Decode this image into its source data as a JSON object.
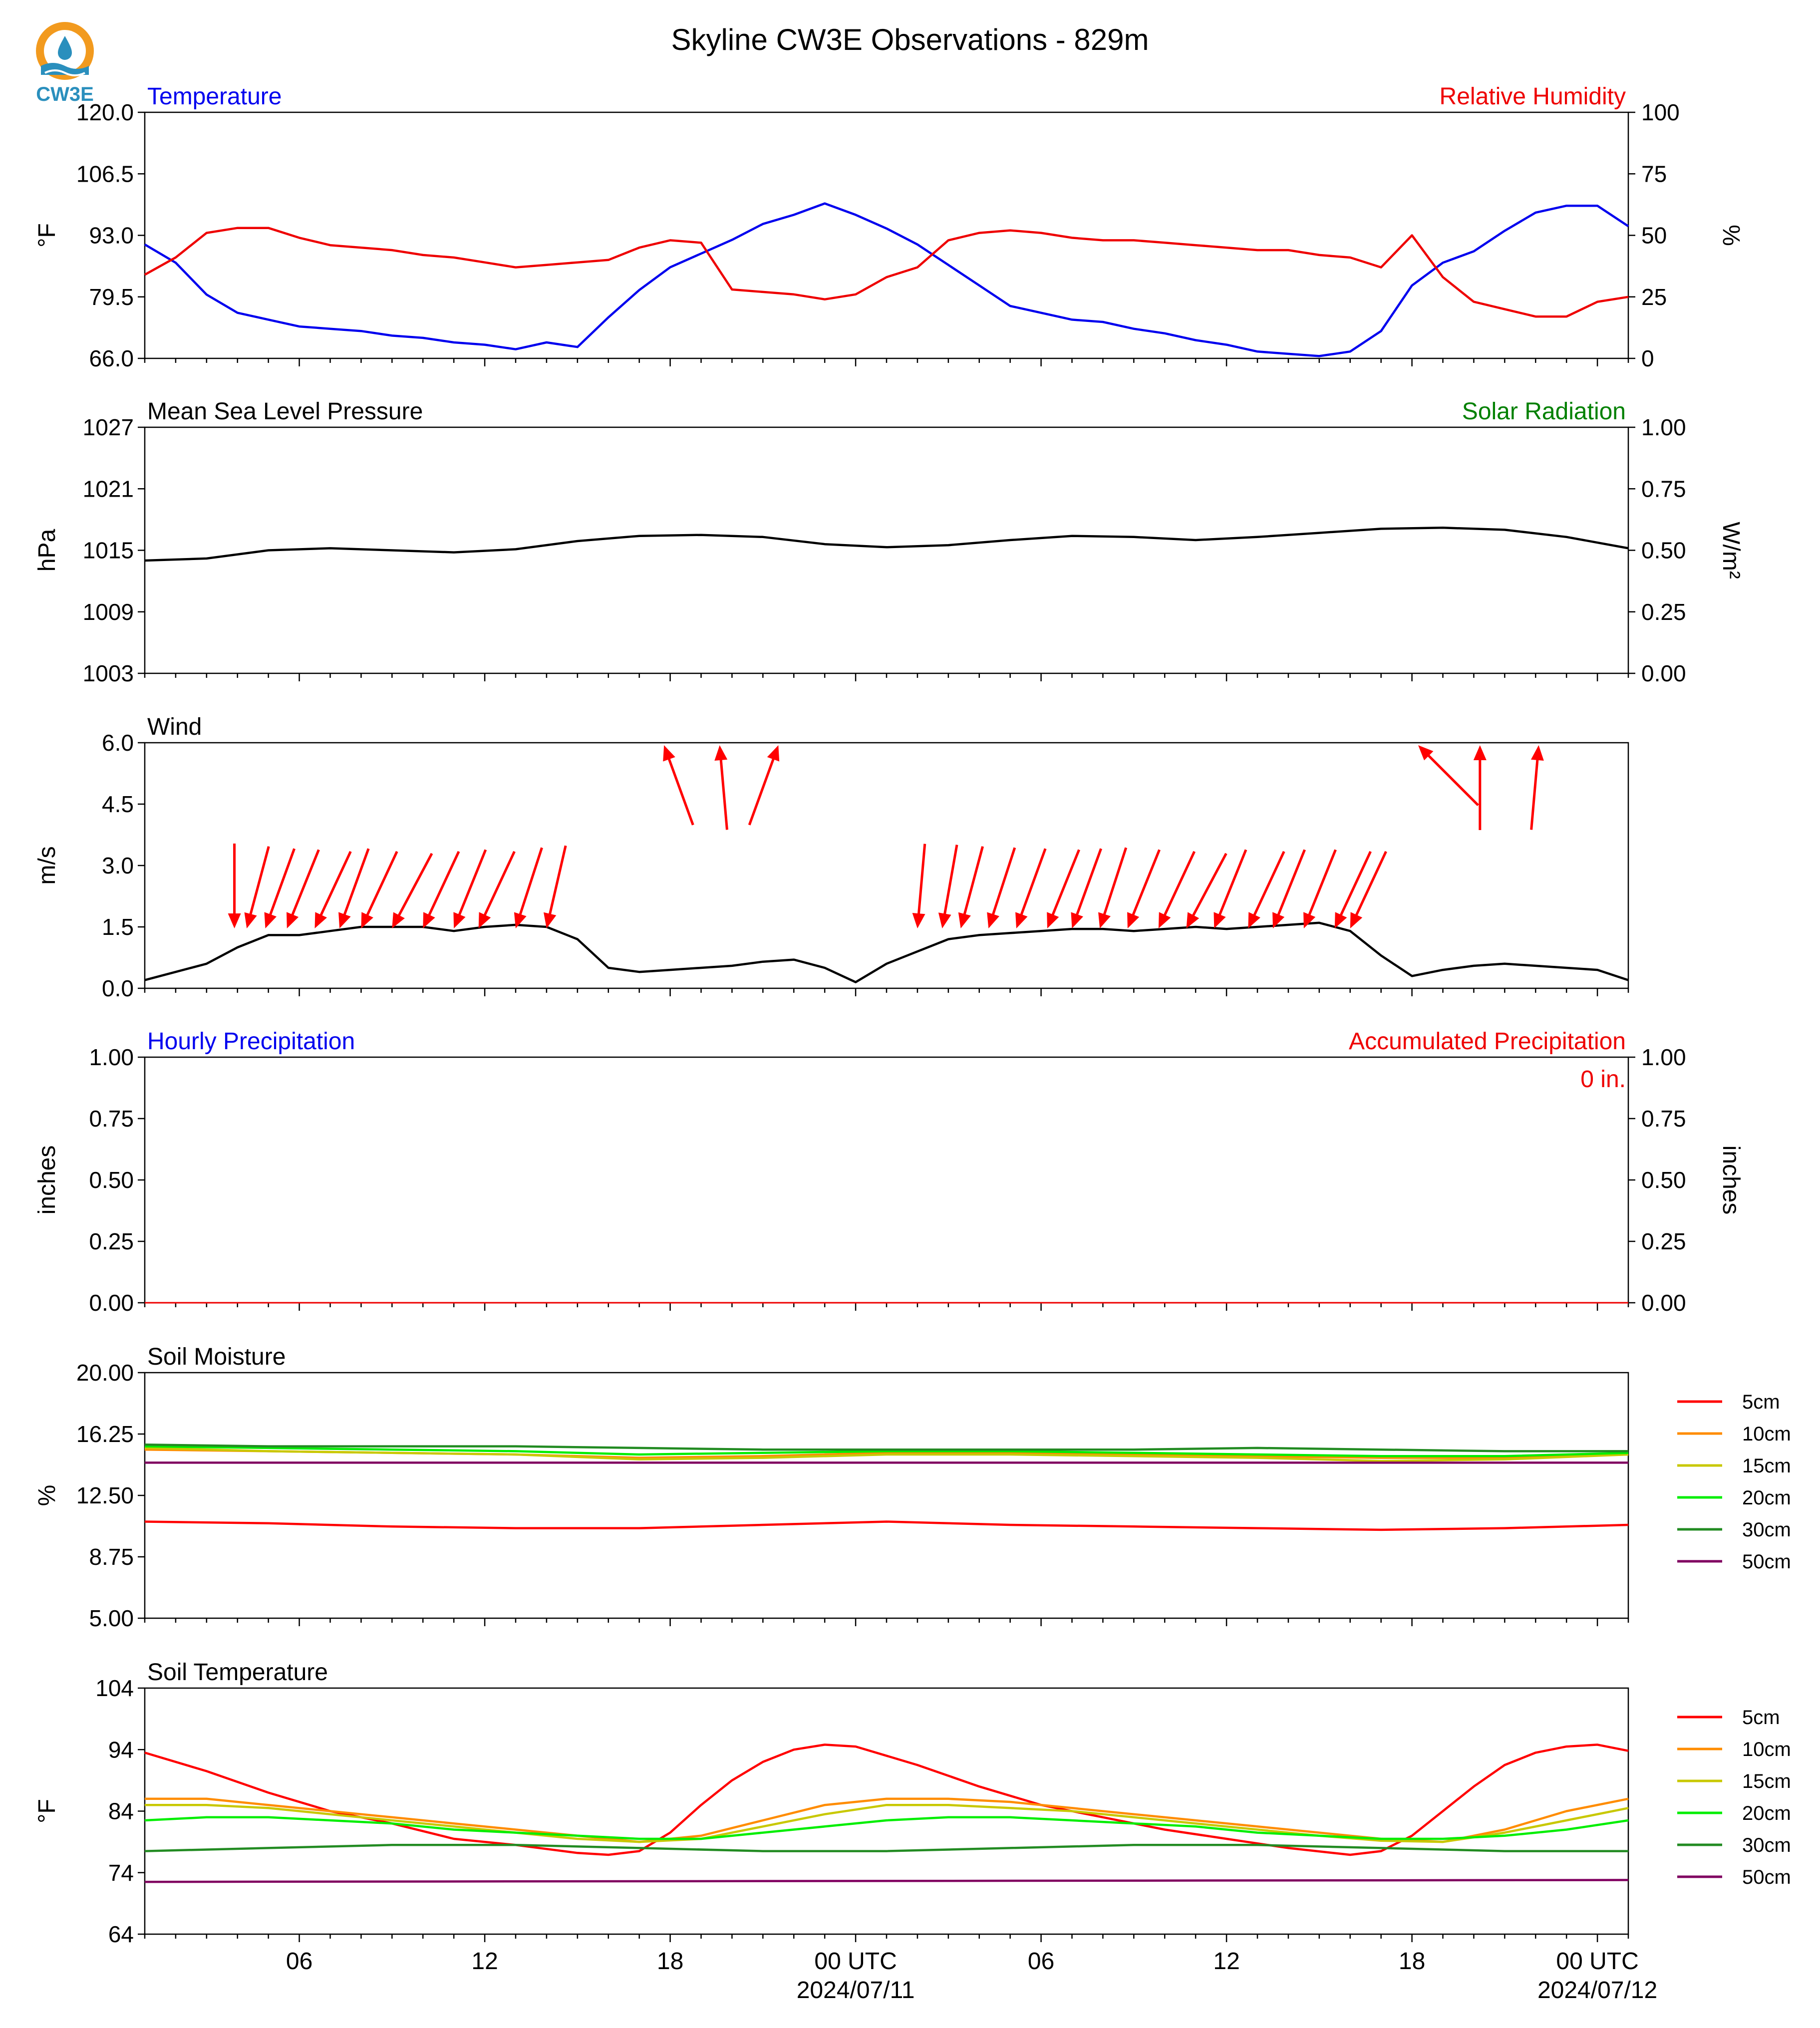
{
  "title": "Skyline CW3E Observations - 829m",
  "logo_text": "CW3E",
  "colors": {
    "temperature": "#0000ee",
    "humidity": "#ee0000",
    "pressure": "#000000",
    "solar": "#008000",
    "wind_arrow": "#ff0000",
    "hourly_precip": "#0000ee",
    "accum_precip": "#ee0000",
    "depth_5cm": "#ff0000",
    "depth_10cm": "#ff8c00",
    "depth_15cm": "#c8c800",
    "depth_20cm": "#00ee00",
    "depth_30cm": "#228b22",
    "depth_50cm": "#800060"
  },
  "x_axis": {
    "ticks": [
      "06",
      "12",
      "18",
      "00 UTC",
      "06",
      "12",
      "18",
      "00 UTC"
    ],
    "tick_hours": [
      6,
      12,
      18,
      24,
      30,
      36,
      42,
      48
    ],
    "dates": [
      "2024/07/11",
      "2024/07/12"
    ],
    "date_hours": [
      24,
      48
    ],
    "range_hours": [
      1,
      49
    ]
  },
  "chart_data": [
    {
      "type": "line",
      "panel": "temperature_humidity",
      "title_left": "Temperature",
      "title_right": "Relative Humidity",
      "ylabel": "°F",
      "ylabel_right": "%",
      "ylim": [
        66.0,
        120.0
      ],
      "ylim_right": [
        0,
        100
      ],
      "yticks": [
        "66.0",
        "79.5",
        "93.0",
        "106.5",
        "120.0"
      ],
      "yticks_right": [
        "0",
        "25",
        "50",
        "75",
        "100"
      ],
      "series": [
        {
          "name": "Temperature",
          "axis": "left",
          "x": [
            1,
            2,
            3,
            4,
            5,
            6,
            7,
            8,
            9,
            10,
            11,
            12,
            13,
            14,
            15,
            16,
            17,
            18,
            19,
            20,
            21,
            22,
            23,
            24,
            25,
            26,
            27,
            28,
            29,
            30,
            31,
            32,
            33,
            34,
            35,
            36,
            37,
            38,
            39,
            40,
            41,
            42,
            43,
            44,
            45,
            46,
            47,
            48,
            49
          ],
          "values": [
            91,
            87,
            80,
            76,
            74.5,
            73,
            72.5,
            72,
            71,
            70.5,
            69.5,
            69,
            68,
            69.5,
            68.5,
            75,
            81,
            86,
            89,
            92,
            95.5,
            97.5,
            100,
            97.5,
            94.5,
            91,
            86.5,
            82,
            77.5,
            76,
            74.5,
            74,
            72.5,
            71.5,
            70,
            69,
            67.5,
            67,
            66.5,
            67.5,
            72,
            82,
            87,
            89.5,
            94,
            98,
            99.5,
            99.5,
            95
          ]
        },
        {
          "name": "Relative Humidity",
          "axis": "right",
          "x": [
            1,
            2,
            3,
            4,
            5,
            6,
            7,
            8,
            9,
            10,
            11,
            12,
            13,
            14,
            15,
            16,
            17,
            18,
            19,
            20,
            21,
            22,
            23,
            24,
            25,
            26,
            27,
            28,
            29,
            30,
            31,
            32,
            33,
            34,
            35,
            36,
            37,
            38,
            39,
            40,
            41,
            42,
            43,
            44,
            45,
            46,
            47,
            48,
            49
          ],
          "values": [
            34,
            41,
            51,
            53,
            53,
            49,
            46,
            45,
            44,
            42,
            41,
            39,
            37,
            38,
            39,
            40,
            45,
            48,
            47,
            28,
            27,
            26,
            24,
            26,
            33,
            37,
            48,
            51,
            52,
            51,
            49,
            48,
            48,
            47,
            46,
            45,
            44,
            44,
            42,
            41,
            37,
            50,
            33,
            23,
            20,
            17,
            17,
            23,
            25
          ]
        }
      ]
    },
    {
      "type": "line",
      "panel": "pressure_solar",
      "title_left": "Mean Sea Level Pressure",
      "title_right": "Solar Radiation",
      "ylabel": "hPa",
      "ylabel_right": "W/m²",
      "ylim": [
        1003,
        1027
      ],
      "ylim_right": [
        0.0,
        1.0
      ],
      "yticks": [
        "1003",
        "1009",
        "1015",
        "1021",
        "1027"
      ],
      "yticks_right": [
        "0.00",
        "0.25",
        "0.50",
        "0.75",
        "1.00"
      ],
      "series": [
        {
          "name": "Mean Sea Level Pressure",
          "axis": "left",
          "x": [
            1,
            3,
            5,
            7,
            9,
            11,
            13,
            15,
            17,
            19,
            21,
            23,
            25,
            27,
            29,
            31,
            33,
            35,
            37,
            39,
            41,
            43,
            45,
            47,
            49
          ],
          "values": [
            1014.0,
            1014.2,
            1015.0,
            1015.2,
            1015.0,
            1014.8,
            1015.1,
            1015.9,
            1016.4,
            1016.5,
            1016.3,
            1015.6,
            1015.3,
            1015.5,
            1016.0,
            1016.4,
            1016.3,
            1016.0,
            1016.3,
            1016.7,
            1017.1,
            1017.2,
            1017.0,
            1016.3,
            1015.2
          ]
        }
      ]
    },
    {
      "type": "line",
      "panel": "wind",
      "title_left": "Wind",
      "ylabel": "m/s",
      "ylim": [
        0.0,
        6.0
      ],
      "yticks": [
        "0.0",
        "1.5",
        "3.0",
        "4.5",
        "6.0"
      ],
      "series": [
        {
          "name": "Wind speed",
          "x": [
            1,
            2,
            3,
            4,
            5,
            6,
            7,
            8,
            9,
            10,
            11,
            12,
            13,
            14,
            15,
            16,
            17,
            18,
            19,
            20,
            21,
            22,
            23,
            24,
            25,
            26,
            27,
            28,
            29,
            30,
            31,
            32,
            33,
            34,
            35,
            36,
            37,
            38,
            39,
            40,
            41,
            42,
            43,
            44,
            45,
            46,
            47,
            48,
            49
          ],
          "values": [
            0.2,
            0.4,
            0.6,
            1.0,
            1.3,
            1.3,
            1.4,
            1.5,
            1.5,
            1.5,
            1.4,
            1.5,
            1.55,
            1.5,
            1.2,
            0.5,
            0.4,
            0.45,
            0.5,
            0.55,
            0.65,
            0.7,
            0.5,
            0.15,
            0.6,
            0.9,
            1.2,
            1.3,
            1.35,
            1.4,
            1.45,
            1.45,
            1.4,
            1.45,
            1.5,
            1.45,
            1.5,
            1.55,
            1.6,
            1.4,
            0.8,
            0.3,
            0.45,
            0.55,
            0.6,
            0.55,
            0.5,
            0.45,
            0.2
          ]
        }
      ],
      "wind_barbs": {
        "hours": [
          3.9,
          4.3,
          4.9,
          5.6,
          6.5,
          7.3,
          8.0,
          9.0,
          10.0,
          11.0,
          11.8,
          13.0,
          14.0,
          17.8,
          19.6,
          21.5,
          26.0,
          26.8,
          27.4,
          28.3,
          29.2,
          30.2,
          31.0,
          31.9,
          32.8,
          33.8,
          34.7,
          35.6,
          36.7,
          37.5,
          38.5,
          39.5,
          40.0,
          42.2,
          44.2,
          46.1
        ],
        "from_direction_deg": [
          360,
          15,
          20,
          22,
          25,
          20,
          25,
          28,
          25,
          22,
          25,
          18,
          13,
          160,
          175,
          200,
          5,
          10,
          15,
          18,
          20,
          22,
          20,
          18,
          22,
          25,
          28,
          22,
          25,
          22,
          22,
          25,
          25,
          135,
          180,
          185
        ]
      }
    },
    {
      "type": "line",
      "panel": "precipitation",
      "title_left": "Hourly Precipitation",
      "title_right": "Accumulated Precipitation",
      "annotation": "0 in.",
      "ylabel": "inches",
      "ylabel_right": "inches",
      "ylim": [
        0.0,
        1.0
      ],
      "ylim_right": [
        0.0,
        1.0
      ],
      "yticks": [
        "0.00",
        "0.25",
        "0.50",
        "0.75",
        "1.00"
      ],
      "yticks_right": [
        "0.00",
        "0.25",
        "0.50",
        "0.75",
        "1.00"
      ],
      "series": [
        {
          "name": "Accumulated Precipitation",
          "x": [
            1,
            49
          ],
          "values": [
            0,
            0
          ]
        }
      ]
    },
    {
      "type": "line",
      "panel": "soil_moisture",
      "title_left": "Soil Moisture",
      "ylabel": "%",
      "ylim": [
        5.0,
        20.0
      ],
      "yticks": [
        "5.00",
        "8.75",
        "12.50",
        "16.25",
        "20.00"
      ],
      "legend": [
        "5cm",
        "10cm",
        "15cm",
        "20cm",
        "30cm",
        "50cm"
      ],
      "series": [
        {
          "name": "5cm",
          "x": [
            1,
            5,
            9,
            13,
            17,
            21,
            25,
            29,
            33,
            37,
            41,
            45,
            49
          ],
          "values": [
            10.9,
            10.8,
            10.6,
            10.5,
            10.5,
            10.7,
            10.9,
            10.7,
            10.6,
            10.5,
            10.4,
            10.5,
            10.7
          ]
        },
        {
          "name": "10cm",
          "x": [
            1,
            5,
            9,
            13,
            17,
            21,
            25,
            29,
            33,
            37,
            41,
            45,
            49
          ],
          "values": [
            15.3,
            15.2,
            15.1,
            15.0,
            14.8,
            14.9,
            15.1,
            15.1,
            15.0,
            14.9,
            14.8,
            14.8,
            15.0
          ]
        },
        {
          "name": "15cm",
          "x": [
            1,
            5,
            9,
            13,
            17,
            21,
            25,
            29,
            33,
            37,
            41,
            45,
            49
          ],
          "values": [
            15.4,
            15.2,
            15.1,
            15.0,
            14.7,
            14.8,
            15.0,
            15.0,
            14.9,
            14.8,
            14.6,
            14.7,
            15.0
          ]
        },
        {
          "name": "20cm",
          "x": [
            1,
            5,
            9,
            13,
            17,
            21,
            25,
            29,
            33,
            37,
            41,
            45,
            49
          ],
          "values": [
            15.5,
            15.4,
            15.3,
            15.2,
            15.0,
            15.1,
            15.2,
            15.2,
            15.1,
            15.0,
            14.9,
            14.9,
            15.1
          ]
        },
        {
          "name": "30cm",
          "x": [
            1,
            5,
            9,
            13,
            17,
            21,
            25,
            29,
            33,
            37,
            41,
            45,
            49
          ],
          "values": [
            15.6,
            15.5,
            15.5,
            15.5,
            15.4,
            15.3,
            15.3,
            15.3,
            15.3,
            15.4,
            15.3,
            15.2,
            15.2
          ]
        },
        {
          "name": "50cm",
          "x": [
            1,
            5,
            9,
            13,
            17,
            21,
            25,
            29,
            33,
            37,
            41,
            45,
            49
          ],
          "values": [
            14.5,
            14.5,
            14.5,
            14.5,
            14.5,
            14.5,
            14.5,
            14.5,
            14.5,
            14.5,
            14.5,
            14.5,
            14.5
          ]
        }
      ]
    },
    {
      "type": "line",
      "panel": "soil_temperature",
      "title_left": "Soil Temperature",
      "ylabel": "°F",
      "ylim": [
        64,
        104
      ],
      "yticks": [
        "64",
        "74",
        "84",
        "94",
        "104"
      ],
      "legend": [
        "5cm",
        "10cm",
        "15cm",
        "20cm",
        "30cm",
        "50cm"
      ],
      "series": [
        {
          "name": "5cm",
          "x": [
            1,
            3,
            5,
            7,
            9,
            11,
            13,
            15,
            16,
            17,
            18,
            19,
            20,
            21,
            22,
            23,
            24,
            26,
            28,
            30,
            32,
            34,
            36,
            38,
            40,
            41,
            42,
            43,
            44,
            45,
            46,
            47,
            48,
            49
          ],
          "values": [
            93.5,
            90.5,
            87,
            84,
            82,
            79.5,
            78.5,
            77.2,
            76.9,
            77.5,
            80.5,
            85,
            89,
            92,
            94,
            94.8,
            94.5,
            91.5,
            88,
            85,
            83,
            81,
            79.5,
            78,
            76.9,
            77.5,
            80,
            84,
            88,
            91.5,
            93.5,
            94.5,
            94.8,
            93.8
          ]
        },
        {
          "name": "10cm",
          "x": [
            1,
            3,
            5,
            7,
            9,
            11,
            13,
            15,
            17,
            19,
            21,
            23,
            25,
            27,
            29,
            31,
            33,
            35,
            37,
            39,
            41,
            43,
            45,
            47,
            49
          ],
          "values": [
            86,
            86,
            85,
            84,
            83,
            82,
            81,
            80,
            79,
            80,
            82.5,
            85,
            86,
            86,
            85.5,
            84.5,
            83.5,
            82.5,
            81.5,
            80.5,
            79.5,
            79,
            81,
            84,
            86
          ]
        },
        {
          "name": "15cm",
          "x": [
            1,
            3,
            5,
            7,
            9,
            11,
            13,
            15,
            17,
            19,
            21,
            23,
            25,
            27,
            29,
            31,
            33,
            35,
            37,
            39,
            41,
            43,
            45,
            47,
            49
          ],
          "values": [
            85,
            85,
            84.5,
            83.5,
            82.5,
            81.5,
            80.5,
            79.5,
            79,
            79.5,
            81.5,
            83.5,
            85,
            85,
            84.5,
            84,
            83,
            82,
            81,
            80,
            79.2,
            79,
            80.5,
            82.5,
            84.5
          ]
        },
        {
          "name": "20cm",
          "x": [
            1,
            3,
            5,
            7,
            9,
            11,
            13,
            15,
            17,
            19,
            21,
            23,
            25,
            27,
            29,
            31,
            33,
            35,
            37,
            39,
            41,
            43,
            45,
            47,
            49
          ],
          "values": [
            82.5,
            83,
            83,
            82.5,
            82,
            81,
            80.5,
            80,
            79.5,
            79.5,
            80.5,
            81.5,
            82.5,
            83,
            83,
            82.5,
            82,
            81.5,
            80.5,
            80,
            79.5,
            79.5,
            80,
            81,
            82.5
          ]
        },
        {
          "name": "30cm",
          "x": [
            1,
            5,
            9,
            13,
            17,
            21,
            25,
            29,
            33,
            37,
            41,
            45,
            49
          ],
          "values": [
            77.5,
            78,
            78.5,
            78.5,
            78,
            77.5,
            77.5,
            78,
            78.5,
            78.5,
            78,
            77.5,
            77.5
          ]
        },
        {
          "name": "50cm",
          "x": [
            1,
            49
          ],
          "values": [
            72.5,
            72.8
          ]
        }
      ]
    }
  ]
}
